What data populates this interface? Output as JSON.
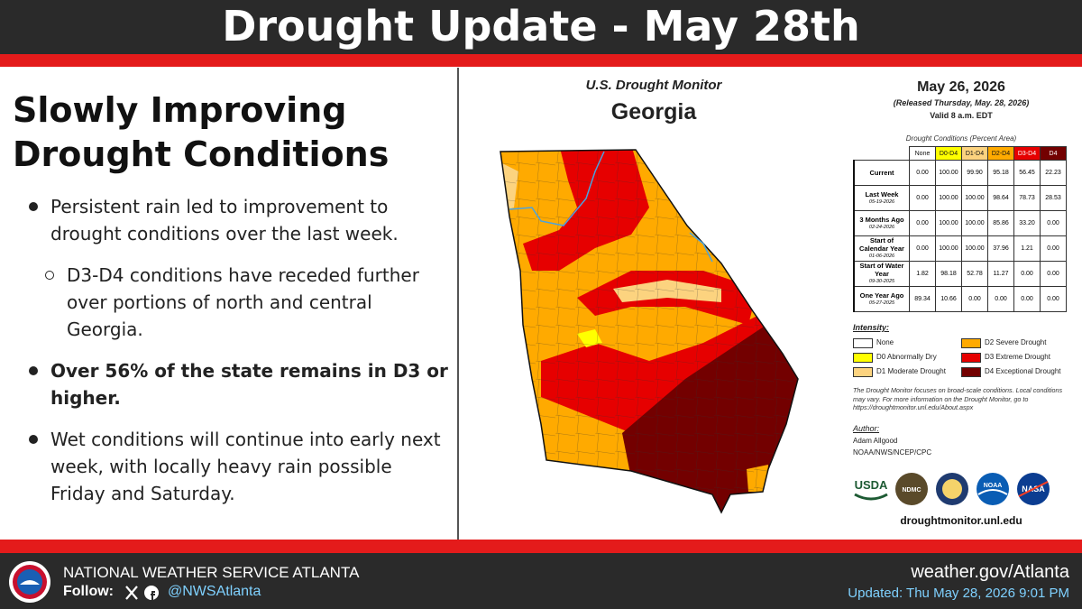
{
  "header": {
    "title": "Drought Update - May 28th"
  },
  "summary": {
    "heading": "Slowly Improving Drought Conditions",
    "bullets": [
      {
        "text": "Persistent rain led to improvement to drought conditions over the last week.",
        "level": 1,
        "bold": false
      },
      {
        "text": "D3-D4 conditions have receded further over portions of north and central Georgia.",
        "level": 2,
        "bold": false
      },
      {
        "text": "Over 56% of the state remains in D3 or higher.",
        "level": 1,
        "bold": true
      },
      {
        "text": "Wet conditions will continue into early next week, with locally heavy rain possible Friday and Saturday.",
        "level": 1,
        "bold": false
      }
    ]
  },
  "map": {
    "title": "U.S. Drought Monitor",
    "state": "Georgia"
  },
  "stats": {
    "date": "May 26, 2026",
    "released": "(Released Thursday, May. 28, 2026)",
    "valid": "Valid 8 a.m. EDT",
    "caption": "Drought Conditions (Percent Area)",
    "columns": [
      {
        "label": "None",
        "color": "#ffffff"
      },
      {
        "label": "D0-D4",
        "color": "#ffff00"
      },
      {
        "label": "D1-D4",
        "color": "#fcd37f"
      },
      {
        "label": "D2-D4",
        "color": "#ffaa00"
      },
      {
        "label": "D3-D4",
        "color": "#e60000"
      },
      {
        "label": "D4",
        "color": "#730000"
      }
    ],
    "rows": [
      {
        "label": "Current",
        "date": null,
        "values": [
          "0.00",
          "100.00",
          "99.90",
          "95.18",
          "56.45",
          "22.23"
        ]
      },
      {
        "label": "Last Week",
        "date": "05-19-2026",
        "values": [
          "0.00",
          "100.00",
          "100.00",
          "98.64",
          "78.73",
          "28.53"
        ]
      },
      {
        "label": "3 Months Ago",
        "date": "02-24-2026",
        "values": [
          "0.00",
          "100.00",
          "100.00",
          "85.86",
          "33.20",
          "0.00"
        ]
      },
      {
        "label": "Start of Calendar Year",
        "date": "01-06-2026",
        "values": [
          "0.00",
          "100.00",
          "100.00",
          "37.96",
          "1.21",
          "0.00"
        ]
      },
      {
        "label": "Start of Water Year",
        "date": "09-30-2025",
        "values": [
          "1.82",
          "98.18",
          "52.78",
          "11.27",
          "0.00",
          "0.00"
        ]
      },
      {
        "label": "One Year Ago",
        "date": "05-27-2025",
        "values": [
          "89.34",
          "10.66",
          "0.00",
          "0.00",
          "0.00",
          "0.00"
        ]
      }
    ]
  },
  "legend": {
    "title": "Intensity:",
    "items": [
      {
        "label": "None",
        "color": "#ffffff"
      },
      {
        "label": "D0 Abnormally Dry",
        "color": "#ffff00"
      },
      {
        "label": "D1 Moderate Drought",
        "color": "#fcd37f"
      },
      {
        "label": "D2 Severe Drought",
        "color": "#ffaa00"
      },
      {
        "label": "D3 Extreme Drought",
        "color": "#e60000"
      },
      {
        "label": "D4 Exceptional Drought",
        "color": "#730000"
      }
    ],
    "note": "The Drought Monitor focuses on broad-scale conditions. Local conditions may vary. For more information on the Drought Monitor, go to https://droughtmonitor.unl.edu/About.aspx"
  },
  "author": {
    "heading": "Author:",
    "name": "Adam Allgood",
    "org": "NOAA/NWS/NCEP/CPC"
  },
  "logos": [
    "USDA",
    "NDMC",
    "NOAA",
    "NASA"
  ],
  "source_url": "droughtmonitor.unl.edu",
  "footer": {
    "org": "NATIONAL WEATHER SERVICE ATLANTA",
    "follow": "Follow:",
    "handle": "@NWSAtlanta",
    "site": "weather.gov/Atlanta",
    "updated": "Updated: Thu May 28, 2026 9:01 PM"
  }
}
